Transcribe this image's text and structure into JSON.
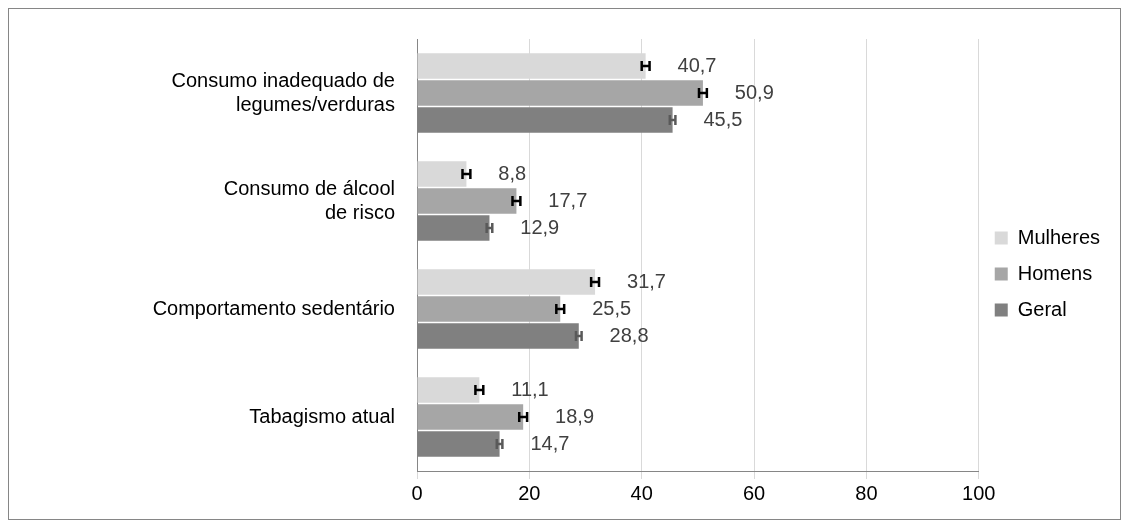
{
  "chart_data": {
    "type": "bar",
    "orientation": "horizontal",
    "categories": [
      "Consumo inadequado de\nlegumes/verduras",
      "Consumo de álcool\nde risco",
      "Comportamento sedentário",
      "Tabagismo atual"
    ],
    "series": [
      {
        "name": "Mulheres",
        "color": "#d9d9d9",
        "values": [
          40.7,
          8.8,
          31.7,
          11.1
        ],
        "errors": [
          0.7,
          0.7,
          0.7,
          0.7
        ],
        "value_labels": [
          "40,7",
          "8,8",
          "31,7",
          "11,1"
        ]
      },
      {
        "name": "Homens",
        "color": "#a6a6a6",
        "values": [
          50.9,
          17.7,
          25.5,
          18.9
        ],
        "errors": [
          0.7,
          0.7,
          0.7,
          0.7
        ],
        "value_labels": [
          "50,9",
          "17,7",
          "25,5",
          "18,9"
        ]
      },
      {
        "name": "Geral",
        "color": "#808080",
        "values": [
          45.5,
          12.9,
          28.8,
          14.7
        ],
        "errors": [
          0.5,
          0.5,
          0.5,
          0.5
        ],
        "value_labels": [
          "45,5",
          "12,9",
          "28,8",
          "14,7"
        ]
      }
    ],
    "xlim": [
      0,
      100
    ],
    "xticks": [
      0,
      20,
      40,
      60,
      80,
      100
    ],
    "grid": "x",
    "legend": "right"
  }
}
